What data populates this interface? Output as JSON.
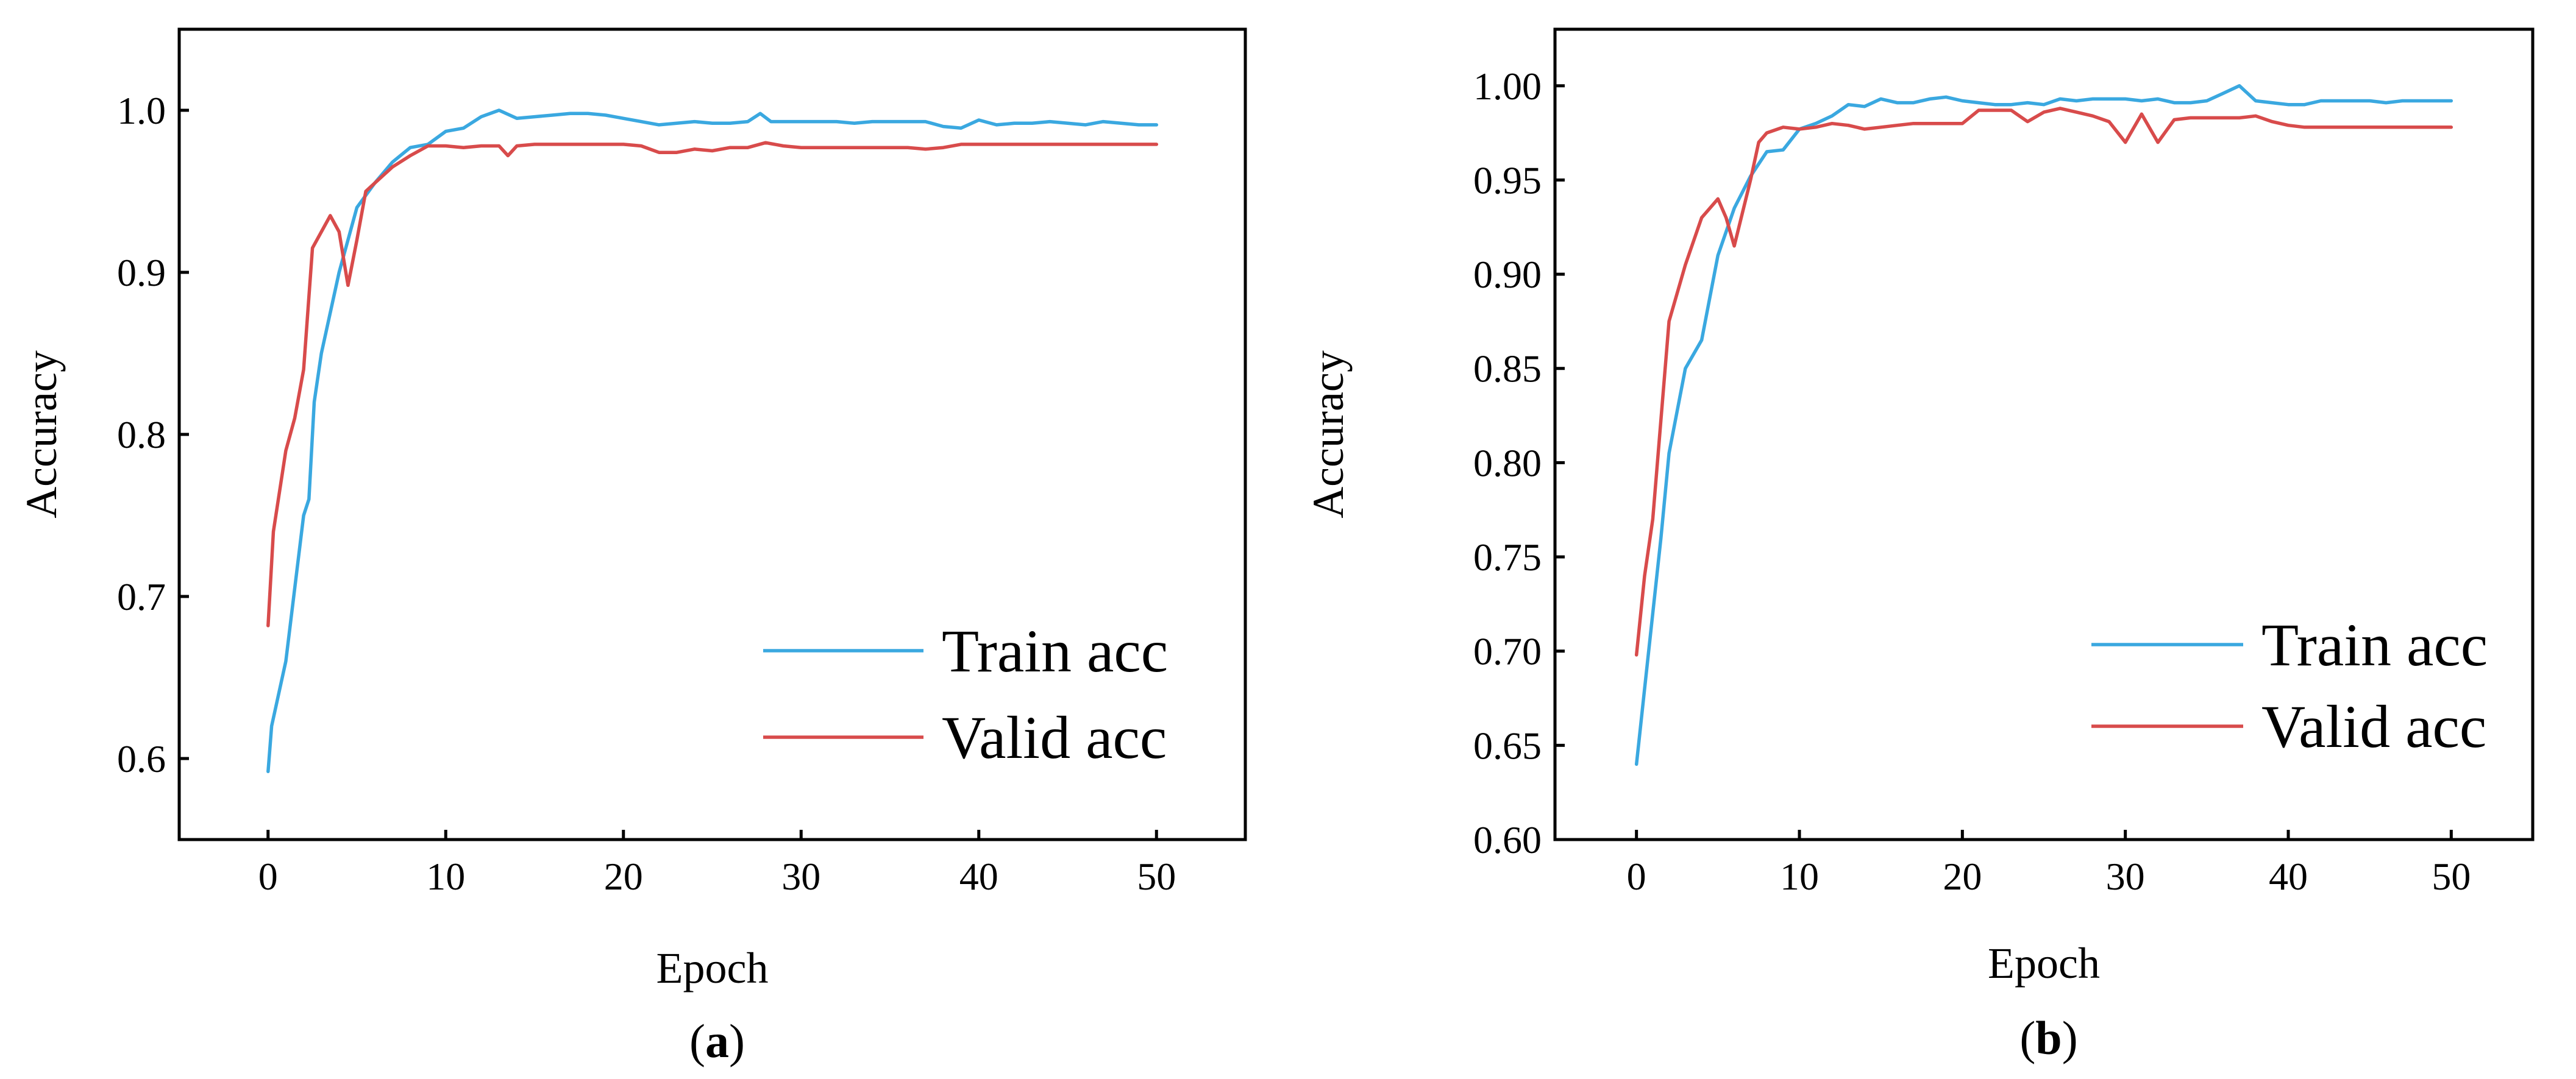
{
  "colors": {
    "train": "#3aa8e0",
    "valid": "#d84b4b"
  },
  "chart_data": [
    {
      "type": "line",
      "caption": "(a)",
      "caption_letter": "a",
      "xlabel": "Epoch",
      "ylabel": "Accuracy",
      "xlim": [
        -5,
        55
      ],
      "ylim": [
        0.55,
        1.05
      ],
      "xticks": [
        0,
        10,
        20,
        30,
        40,
        50
      ],
      "xtick_labels": [
        "0",
        "10",
        "20",
        "30",
        "40",
        "50"
      ],
      "yticks": [
        0.6,
        0.7,
        0.8,
        0.9,
        1.0
      ],
      "ytick_labels": [
        "0.6",
        "0.7",
        "0.8",
        "0.9",
        "1.0"
      ],
      "legend_position": "bottom-right",
      "series": [
        {
          "name": "Train acc",
          "x": [
            0,
            0.2,
            1,
            2,
            2.3,
            2.6,
            3,
            4,
            5,
            6,
            7,
            8,
            9,
            10,
            11,
            12,
            13,
            14,
            15,
            16,
            17,
            18,
            19,
            20,
            21,
            22,
            23,
            24,
            25,
            26,
            27,
            27.7,
            28.3,
            29,
            30,
            31,
            32,
            33,
            34,
            35,
            36,
            37,
            38,
            39,
            40,
            41,
            42,
            43,
            44,
            45,
            46,
            47,
            48,
            49,
            50
          ],
          "y": [
            0.592,
            0.62,
            0.66,
            0.75,
            0.76,
            0.82,
            0.85,
            0.9,
            0.94,
            0.955,
            0.968,
            0.977,
            0.979,
            0.987,
            0.989,
            0.996,
            1.0,
            0.995,
            0.996,
            0.997,
            0.998,
            0.998,
            0.997,
            0.995,
            0.993,
            0.991,
            0.992,
            0.993,
            0.992,
            0.992,
            0.993,
            0.998,
            0.993,
            0.993,
            0.993,
            0.993,
            0.993,
            0.992,
            0.993,
            0.993,
            0.993,
            0.993,
            0.99,
            0.989,
            0.994,
            0.991,
            0.992,
            0.992,
            0.993,
            0.992,
            0.991,
            0.993,
            0.992,
            0.991,
            0.991
          ]
        },
        {
          "name": "Valid acc",
          "x": [
            0,
            0.3,
            1,
            1.5,
            2,
            2.5,
            3,
            3.5,
            4,
            4.5,
            5,
            5.5,
            6,
            7,
            8,
            9,
            10,
            11,
            12,
            13,
            13.5,
            14,
            15,
            16,
            17,
            18,
            19,
            20,
            21,
            22,
            23,
            24,
            25,
            26,
            27,
            28,
            29,
            30,
            31,
            32,
            33,
            34,
            35,
            36,
            37,
            38,
            39,
            40,
            41,
            42,
            43,
            44,
            45,
            46,
            47,
            48,
            49,
            50
          ],
          "y": [
            0.682,
            0.74,
            0.79,
            0.81,
            0.84,
            0.915,
            0.925,
            0.935,
            0.925,
            0.892,
            0.92,
            0.95,
            0.955,
            0.965,
            0.972,
            0.978,
            0.978,
            0.977,
            0.978,
            0.978,
            0.972,
            0.978,
            0.979,
            0.979,
            0.979,
            0.979,
            0.979,
            0.979,
            0.978,
            0.974,
            0.974,
            0.976,
            0.975,
            0.977,
            0.977,
            0.98,
            0.978,
            0.977,
            0.977,
            0.977,
            0.977,
            0.977,
            0.977,
            0.977,
            0.976,
            0.977,
            0.979,
            0.979,
            0.979,
            0.979,
            0.979,
            0.979,
            0.979,
            0.979,
            0.979,
            0.979,
            0.979,
            0.979
          ]
        }
      ]
    },
    {
      "type": "line",
      "caption": "(b)",
      "caption_letter": "b",
      "xlabel": "Epoch",
      "ylabel": "Accuracy",
      "xlim": [
        -5,
        55
      ],
      "ylim": [
        0.6,
        1.03
      ],
      "xticks": [
        0,
        10,
        20,
        30,
        40,
        50
      ],
      "xtick_labels": [
        "0",
        "10",
        "20",
        "30",
        "40",
        "50"
      ],
      "yticks": [
        0.6,
        0.65,
        0.7,
        0.75,
        0.8,
        0.85,
        0.9,
        0.95,
        1.0
      ],
      "ytick_labels": [
        "0.60",
        "0.65",
        "0.70",
        "0.75",
        "0.80",
        "0.85",
        "0.90",
        "0.95",
        "1.00"
      ],
      "legend_position": "bottom-right",
      "series": [
        {
          "name": "Train acc",
          "x": [
            0,
            0.5,
            1,
            1.5,
            2,
            3,
            4,
            5,
            6,
            7,
            8,
            9,
            10,
            11,
            12,
            13,
            14,
            15,
            16,
            17,
            18,
            19,
            20,
            21,
            22,
            23,
            24,
            25,
            26,
            27,
            28,
            29,
            30,
            31,
            32,
            33,
            34,
            35,
            36,
            37,
            38,
            39,
            40,
            41,
            42,
            43,
            44,
            45,
            46,
            47,
            48,
            49,
            50
          ],
          "y": [
            0.64,
            0.68,
            0.72,
            0.76,
            0.805,
            0.85,
            0.865,
            0.91,
            0.935,
            0.952,
            0.965,
            0.966,
            0.977,
            0.98,
            0.984,
            0.99,
            0.989,
            0.993,
            0.991,
            0.991,
            0.993,
            0.994,
            0.992,
            0.991,
            0.99,
            0.99,
            0.991,
            0.99,
            0.993,
            0.992,
            0.993,
            0.993,
            0.993,
            0.992,
            0.993,
            0.991,
            0.991,
            0.992,
            0.996,
            1.0,
            0.992,
            0.991,
            0.99,
            0.99,
            0.992,
            0.992,
            0.992,
            0.992,
            0.991,
            0.992,
            0.992,
            0.992,
            0.992
          ]
        },
        {
          "name": "Valid acc",
          "x": [
            0,
            0.5,
            1,
            2,
            3,
            4,
            5,
            5.5,
            6,
            7,
            7.5,
            8,
            9,
            10,
            11,
            12,
            13,
            14,
            15,
            16,
            17,
            18,
            19,
            20,
            21,
            22,
            23,
            24,
            25,
            26,
            27,
            28,
            29,
            30,
            31,
            32,
            33,
            34,
            35,
            36,
            37,
            38,
            39,
            40,
            41,
            42,
            43,
            44,
            45,
            46,
            47,
            48,
            49,
            50
          ],
          "y": [
            0.698,
            0.74,
            0.77,
            0.875,
            0.905,
            0.93,
            0.94,
            0.93,
            0.915,
            0.95,
            0.97,
            0.975,
            0.978,
            0.977,
            0.978,
            0.98,
            0.979,
            0.977,
            0.978,
            0.979,
            0.98,
            0.98,
            0.98,
            0.98,
            0.987,
            0.987,
            0.987,
            0.981,
            0.986,
            0.988,
            0.986,
            0.984,
            0.981,
            0.97,
            0.985,
            0.97,
            0.982,
            0.983,
            0.983,
            0.983,
            0.983,
            0.984,
            0.981,
            0.979,
            0.978,
            0.978,
            0.978,
            0.978,
            0.978,
            0.978,
            0.978,
            0.978,
            0.978,
            0.978
          ]
        }
      ]
    }
  ]
}
